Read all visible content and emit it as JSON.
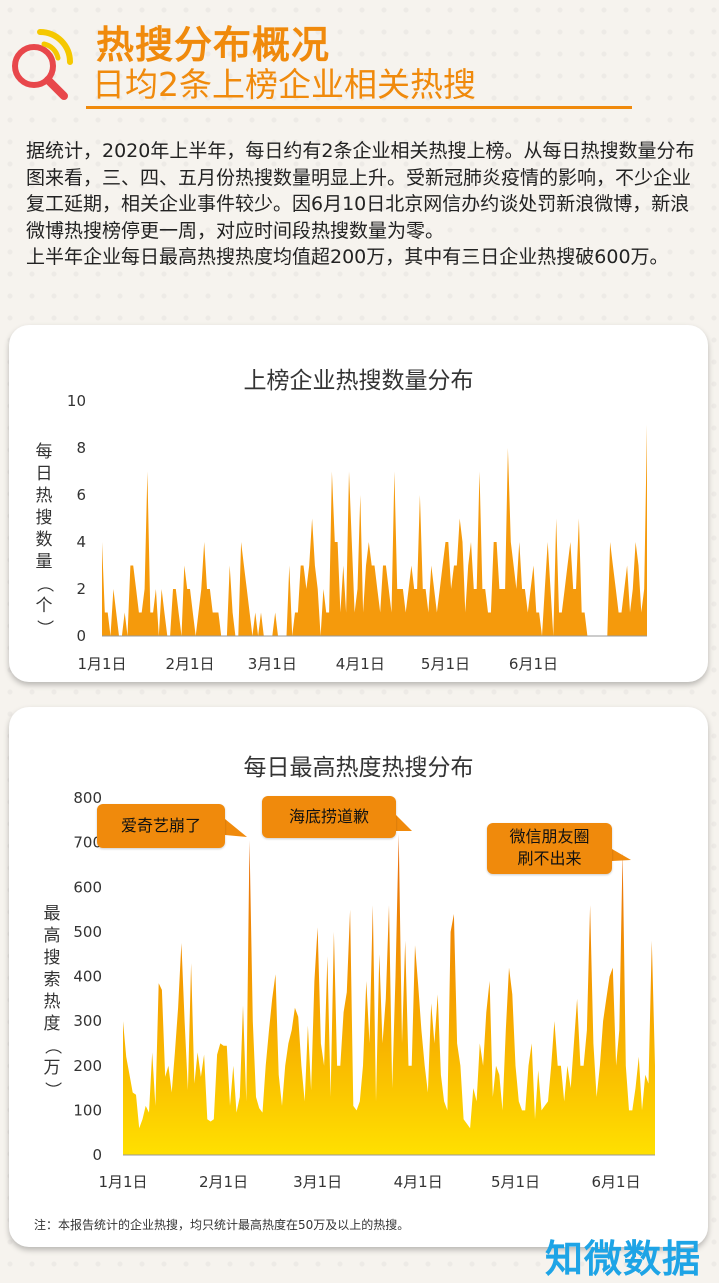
{
  "header": {
    "title": "热搜分布概况",
    "subtitle": "日均2条上榜企业相关热搜"
  },
  "intro": {
    "para1": "据统计，2020年上半年，每日约有2条企业相关热搜上榜。从每日热搜数量分布图来看，三、四、五月份热搜数量明显上升。受新冠肺炎疫情的影响，不少企业复工延期，相关企业事件较少。因6月10日北京网信办约谈处罚新浪微博，新浪微博热搜榜停更一周，对应时间段热搜数量为零。",
    "para2": "上半年企业每日最高热搜热度均值超200万，其中有三日企业热搜破600万。"
  },
  "colors": {
    "accent": "#f08a0c",
    "brand": "#1ea4e6",
    "area_top": "#e45a10",
    "area_bottom": "#ffe000"
  },
  "icons": {
    "logo": "search-icon"
  },
  "chart_data": [
    {
      "type": "area",
      "title": "上榜企业热搜数量分布",
      "ylabel": "每日热搜数量（个）",
      "xlabel": "",
      "ylim": [
        0,
        10
      ],
      "yticks": [
        0,
        2,
        4,
        6,
        8,
        10
      ],
      "xticks": [
        "1月1日",
        "2月1日",
        "3月1日",
        "4月1日",
        "5月1日",
        "6月1日"
      ],
      "x_start": "2020-01-01",
      "x_end": "2020-06-30",
      "grid": false,
      "values": [
        4,
        1,
        1,
        0,
        2,
        1,
        0,
        0,
        1,
        0,
        3,
        3,
        2,
        1,
        1,
        2,
        7,
        1,
        1,
        2,
        0,
        2,
        1,
        0,
        0,
        2,
        2,
        1,
        0,
        3,
        2,
        2,
        1,
        0,
        1,
        2,
        4,
        2,
        2,
        1,
        1,
        1,
        0,
        0,
        0,
        3,
        1,
        0,
        0,
        4,
        3,
        2,
        1,
        0,
        1,
        0,
        1,
        0,
        0,
        0,
        0,
        1,
        0,
        0,
        0,
        0,
        3,
        0,
        1,
        1,
        3,
        3,
        2,
        3,
        5,
        3,
        2,
        0,
        2,
        1,
        1,
        7,
        4,
        4,
        1,
        3,
        1,
        7,
        4,
        1,
        2,
        6,
        1,
        3,
        4,
        3,
        3,
        2,
        1,
        3,
        3,
        2,
        1,
        7,
        2,
        2,
        2,
        1,
        2,
        3,
        2,
        2,
        6,
        2,
        2,
        1,
        3,
        2,
        1,
        2,
        3,
        4,
        4,
        2,
        3,
        3,
        5,
        4,
        1,
        3,
        4,
        2,
        2,
        7,
        2,
        2,
        1,
        1,
        4,
        4,
        2,
        2,
        2,
        8,
        4,
        3,
        2,
        4,
        2,
        2,
        1,
        2,
        3,
        1,
        1,
        0,
        2,
        4,
        2,
        0,
        5,
        1,
        1,
        2,
        3,
        4,
        2,
        2,
        5,
        1,
        1,
        0,
        0,
        0,
        0,
        0,
        0,
        0,
        0,
        4,
        3,
        2,
        1,
        1,
        2,
        3,
        1,
        2,
        4,
        3,
        1,
        2,
        9
      ],
      "source_note": "注：本报告统计的企业热搜，均只统计最高热度在50万及以上的热搜。"
    },
    {
      "type": "area",
      "title": "每日最高热度热搜分布",
      "ylabel": "最高搜索热度（万）",
      "xlabel": "",
      "ylim": [
        0,
        800
      ],
      "yticks": [
        0,
        100,
        200,
        300,
        400,
        500,
        600,
        700,
        800
      ],
      "xticks": [
        "1月1日",
        "2月1日",
        "3月1日",
        "4月1日",
        "5月1日",
        "6月1日"
      ],
      "x_start": "2020-01-01",
      "x_end": "2020-06-30",
      "grid": false,
      "values": [
        300,
        220,
        180,
        140,
        135,
        60,
        80,
        110,
        95,
        230,
        110,
        385,
        370,
        175,
        200,
        140,
        230,
        330,
        475,
        300,
        145,
        430,
        160,
        230,
        175,
        225,
        80,
        75,
        80,
        225,
        250,
        245,
        245,
        110,
        200,
        95,
        130,
        335,
        120,
        705,
        300,
        130,
        105,
        95,
        200,
        280,
        350,
        405,
        180,
        110,
        200,
        250,
        280,
        330,
        310,
        200,
        120,
        290,
        145,
        390,
        510,
        250,
        200,
        445,
        130,
        500,
        200,
        200,
        320,
        365,
        550,
        110,
        100,
        120,
        200,
        390,
        250,
        560,
        120,
        450,
        250,
        350,
        560,
        150,
        400,
        720,
        250,
        480,
        200,
        200,
        470,
        380,
        280,
        200,
        140,
        340,
        250,
        360,
        180,
        120,
        100,
        500,
        540,
        250,
        200,
        80,
        70,
        60,
        150,
        120,
        250,
        200,
        320,
        390,
        130,
        200,
        180,
        100,
        280,
        420,
        360,
        200,
        120,
        100,
        100,
        200,
        250,
        80,
        190,
        100,
        110,
        120,
        200,
        300,
        200,
        200,
        120,
        200,
        150,
        250,
        350,
        200,
        200,
        280,
        560,
        250,
        130,
        200,
        300,
        350,
        400,
        420,
        200,
        280,
        680,
        200,
        100,
        100,
        150,
        220,
        100,
        180,
        160,
        480,
        200
      ],
      "callouts": [
        "爱奇艺崩了",
        "海底捞道歉",
        "微信朋友圈刷不出来"
      ]
    }
  ],
  "footer": {
    "note": "注：本报告统计的企业热搜，均只统计最高热度在50万及以上的热搜。",
    "brand": "知微数据"
  }
}
